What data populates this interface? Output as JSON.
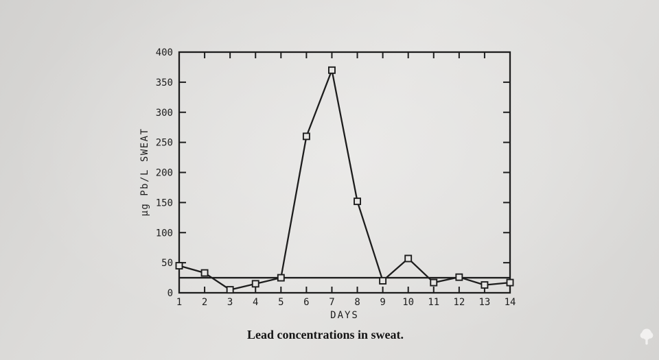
{
  "chart_data": {
    "type": "line",
    "title": "Lead concentrations in sweat.",
    "xlabel": "DAYS",
    "ylabel": "µg Pb/L SWEAT",
    "categories": [
      "1",
      "2",
      "3",
      "4",
      "5",
      "6",
      "7",
      "8",
      "9",
      "10",
      "11",
      "12",
      "13",
      "14"
    ],
    "values": [
      45,
      33,
      5,
      15,
      25,
      260,
      370,
      152,
      20,
      57,
      17,
      26,
      13,
      17
    ],
    "reference_line": 25,
    "ylim": [
      0,
      400
    ],
    "yticks": [
      0,
      50,
      100,
      150,
      200,
      250,
      300,
      350,
      400
    ],
    "grid": false,
    "legend": "none",
    "marker": "open-square",
    "colors": {
      "ink": "#1d1d1d",
      "marker_fill": "#e6e5e3"
    }
  },
  "watermark": {
    "icon": "tree-logo"
  }
}
